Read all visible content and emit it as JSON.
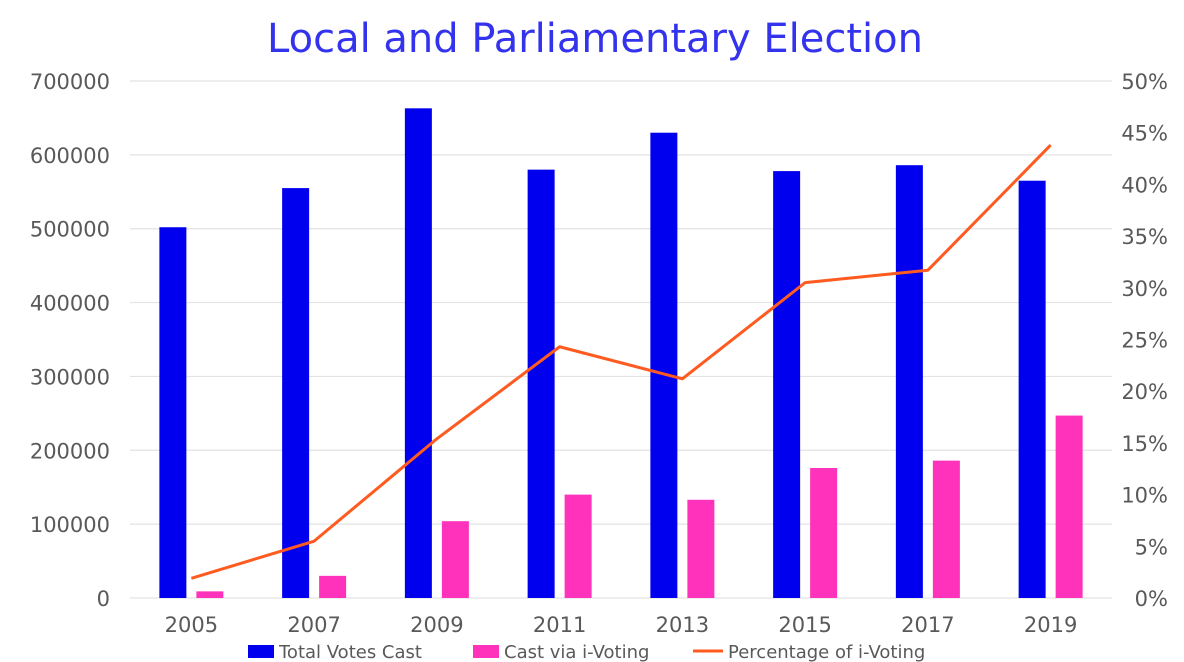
{
  "chart_data": {
    "type": "bar",
    "title": "Local and Parliamentary Election",
    "categories": [
      "2005",
      "2007",
      "2009",
      "2011",
      "2013",
      "2015",
      "2017",
      "2019"
    ],
    "series": [
      {
        "name": "Total Votes Cast",
        "type": "bar",
        "axis": "left",
        "color": "#0000ee",
        "values": [
          502000,
          555000,
          663000,
          580000,
          630000,
          578000,
          586000,
          565000
        ]
      },
      {
        "name": "Cast via i-Voting",
        "type": "bar",
        "axis": "left",
        "color": "#ff33bb",
        "values": [
          9000,
          30000,
          104000,
          140000,
          133000,
          176000,
          186000,
          247000
        ]
      },
      {
        "name": "Percentage of i-Voting",
        "type": "line",
        "axis": "right",
        "color": "#ff5a1f",
        "values": [
          1.9,
          5.5,
          15.4,
          24.3,
          21.2,
          30.5,
          31.7,
          43.8
        ]
      }
    ],
    "y_left": {
      "ylim": [
        0,
        700000
      ],
      "ticks": [
        0,
        100000,
        200000,
        300000,
        400000,
        500000,
        600000,
        700000
      ],
      "tick_labels": [
        "0",
        "100000",
        "200000",
        "300000",
        "400000",
        "500000",
        "600000",
        "700000"
      ]
    },
    "y_right": {
      "ylim": [
        0,
        50
      ],
      "ticks": [
        0,
        5,
        10,
        15,
        20,
        25,
        30,
        35,
        40,
        45,
        50
      ],
      "tick_labels": [
        "0%",
        "5%",
        "10%",
        "15%",
        "20%",
        "25%",
        "30%",
        "35%",
        "40%",
        "45%",
        "50%"
      ]
    },
    "grid": true,
    "legend_position": "bottom",
    "title_color": "#3333ee",
    "grid_color": "#e3e3e3",
    "text_color": "#595959"
  }
}
